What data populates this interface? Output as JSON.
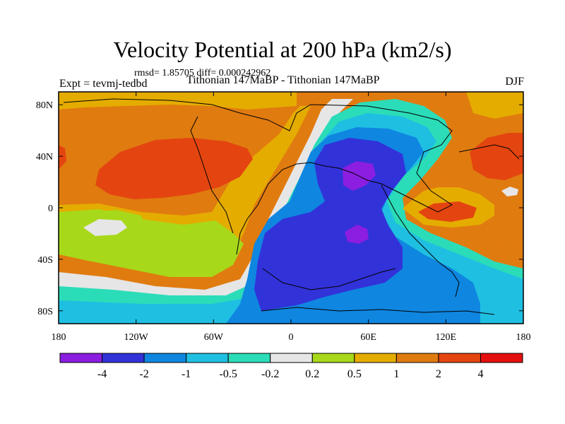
{
  "chart_data": {
    "type": "heatmap",
    "title": "Velocity Potential at 200 hPa (km2/s)",
    "stats": "rmsd= 1.85705 diff= 0.000242962",
    "experiment": "Expt = tevmj-tedbd",
    "subtitle": "Tithonian 147MaBP - Tithonian 147MaBP",
    "season": "DJF",
    "x_ticks": [
      "180",
      "120W",
      "60W",
      "0",
      "60E",
      "120E",
      "180"
    ],
    "x_values": [
      -180,
      -120,
      -60,
      0,
      60,
      120,
      180
    ],
    "y_ticks": [
      "80N",
      "40N",
      "0",
      "40S",
      "80S"
    ],
    "y_values": [
      80,
      40,
      0,
      -40,
      -80
    ],
    "xlim": [
      -180,
      180
    ],
    "ylim": [
      -90,
      90
    ],
    "colorbar": {
      "levels": [
        "-4",
        "-2",
        "-1",
        "-0.5",
        "-0.2",
        "0.2",
        "0.5",
        "1",
        "2",
        "4"
      ],
      "colors": [
        "#8b1ee0",
        "#3232d9",
        "#0f86e0",
        "#1fbfe2",
        "#2bdcb8",
        "#e6e6e6",
        "#a8d81a",
        "#e5ac00",
        "#e07b10",
        "#e44510",
        "#e40f0f"
      ]
    },
    "regions": [
      {
        "name": "west-positive",
        "level": 8,
        "value": "1 to 2"
      },
      {
        "name": "west-positive-core",
        "level": 9,
        "value": "2 to 4"
      },
      {
        "name": "central-negative",
        "level": 1,
        "value": "-4 to -2"
      },
      {
        "name": "minimum-north",
        "level": 0,
        "value": "< -4"
      },
      {
        "name": "minimum-south",
        "level": 0,
        "value": "< -4"
      },
      {
        "name": "east-positive",
        "level": 9,
        "value": "2 to 4"
      },
      {
        "name": "east-equatorial-positive",
        "level": 9,
        "value": "2 to 4"
      }
    ]
  }
}
